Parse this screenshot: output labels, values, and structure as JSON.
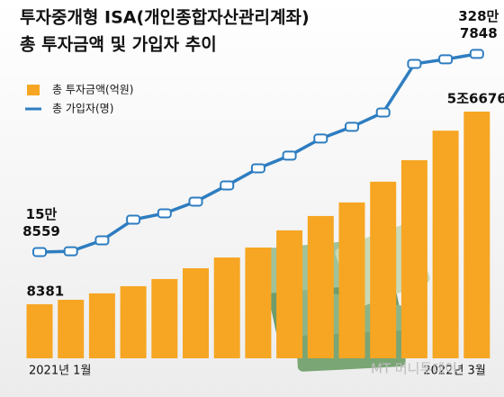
{
  "chart_data": {
    "type": "bar-line",
    "title": "투자중개형 ISA(개인종합자산관리계좌)",
    "subtitle": "총 투자금액 및 가입자 추이",
    "categories": [
      "2021년 1월",
      null,
      null,
      null,
      null,
      null,
      null,
      null,
      null,
      null,
      null,
      null,
      null,
      null,
      "2022년 3월"
    ],
    "series": [
      {
        "name": "총 투자금액(억원)",
        "type": "bar",
        "color": "#f6a623",
        "values": [
          8381,
          9500,
          11100,
          12900,
          14700,
          17400,
          20100,
          22600,
          26900,
          30500,
          33900,
          39100,
          44500,
          51900,
          56676
        ],
        "value_labels": [
          "8381",
          null,
          null,
          null,
          null,
          null,
          null,
          null,
          null,
          null,
          null,
          null,
          null,
          null,
          "5조6676"
        ]
      },
      {
        "name": "총 가입자(명)",
        "type": "line",
        "axis": "y2",
        "color": "#2e7dc0",
        "values": [
          158559,
          170000,
          343000,
          670000,
          770000,
          955000,
          1211000,
          1481000,
          1681000,
          1951000,
          2136000,
          2363000,
          3131000,
          3203000,
          3287848
        ],
        "value_labels": [
          "15만 8559",
          null,
          null,
          null,
          null,
          null,
          null,
          null,
          null,
          null,
          null,
          null,
          null,
          null,
          "328만 7848"
        ]
      }
    ],
    "ylim": [
      -5170,
      84650
    ],
    "y2lim": [
      -1520000,
      4140000
    ],
    "watermark": "MT 머니투데이"
  }
}
